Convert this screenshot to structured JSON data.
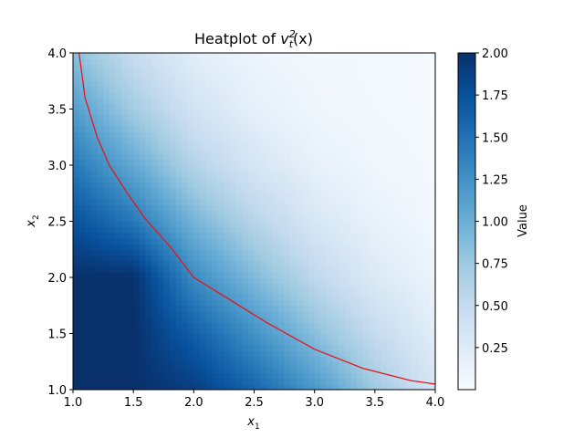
{
  "chart_data": {
    "type": "heatmap",
    "title": {
      "prefix": "Heatplot of ",
      "var": "v",
      "sub": "t",
      "sup": "2",
      "arg": "(x)"
    },
    "xlabel": {
      "var": "x",
      "sub": "1"
    },
    "ylabel": {
      "var": "x",
      "sub": "2"
    },
    "xlim": [
      1.0,
      4.0
    ],
    "ylim": [
      1.0,
      4.0
    ],
    "xticks": [
      "1.0",
      "1.5",
      "2.0",
      "2.5",
      "3.0",
      "3.5",
      "4.0"
    ],
    "yticks": [
      "1.0",
      "1.5",
      "2.0",
      "2.5",
      "3.0",
      "3.5",
      "4.0"
    ],
    "colormap": "Blues",
    "colorbar": {
      "label": "Value",
      "range": [
        0.0,
        2.0
      ],
      "ticks": [
        "0.25",
        "0.50",
        "0.75",
        "1.00",
        "1.25",
        "1.50",
        "1.75",
        "2.00"
      ]
    },
    "heatmap_grid": {
      "x": [
        1.0,
        1.5,
        2.0,
        2.5,
        3.0,
        3.5,
        4.0
      ],
      "y": [
        1.0,
        1.5,
        2.0,
        2.5,
        3.0,
        3.5,
        4.0
      ],
      "z": [
        [
          2.0,
          2.0,
          1.9,
          1.6,
          1.2,
          0.75,
          0.35
        ],
        [
          2.0,
          2.0,
          1.65,
          1.25,
          0.85,
          0.5,
          0.22
        ],
        [
          2.0,
          2.0,
          1.3,
          0.9,
          0.55,
          0.28,
          0.12
        ],
        [
          1.75,
          1.45,
          0.95,
          0.6,
          0.32,
          0.15,
          0.05
        ],
        [
          1.45,
          1.05,
          0.62,
          0.34,
          0.16,
          0.07,
          0.03
        ],
        [
          1.15,
          0.72,
          0.38,
          0.18,
          0.08,
          0.04,
          0.02
        ],
        [
          0.85,
          0.48,
          0.22,
          0.1,
          0.05,
          0.03,
          0.02
        ]
      ]
    },
    "contour": {
      "color": "#e8141c",
      "points": [
        [
          1.05,
          4.0
        ],
        [
          1.1,
          3.6
        ],
        [
          1.2,
          3.25
        ],
        [
          1.3,
          3.0
        ],
        [
          1.45,
          2.75
        ],
        [
          1.6,
          2.52
        ],
        [
          1.8,
          2.28
        ],
        [
          2.0,
          2.0
        ],
        [
          2.3,
          1.8
        ],
        [
          2.6,
          1.6
        ],
        [
          3.0,
          1.36
        ],
        [
          3.4,
          1.19
        ],
        [
          3.8,
          1.08
        ],
        [
          4.0,
          1.05
        ]
      ]
    }
  }
}
